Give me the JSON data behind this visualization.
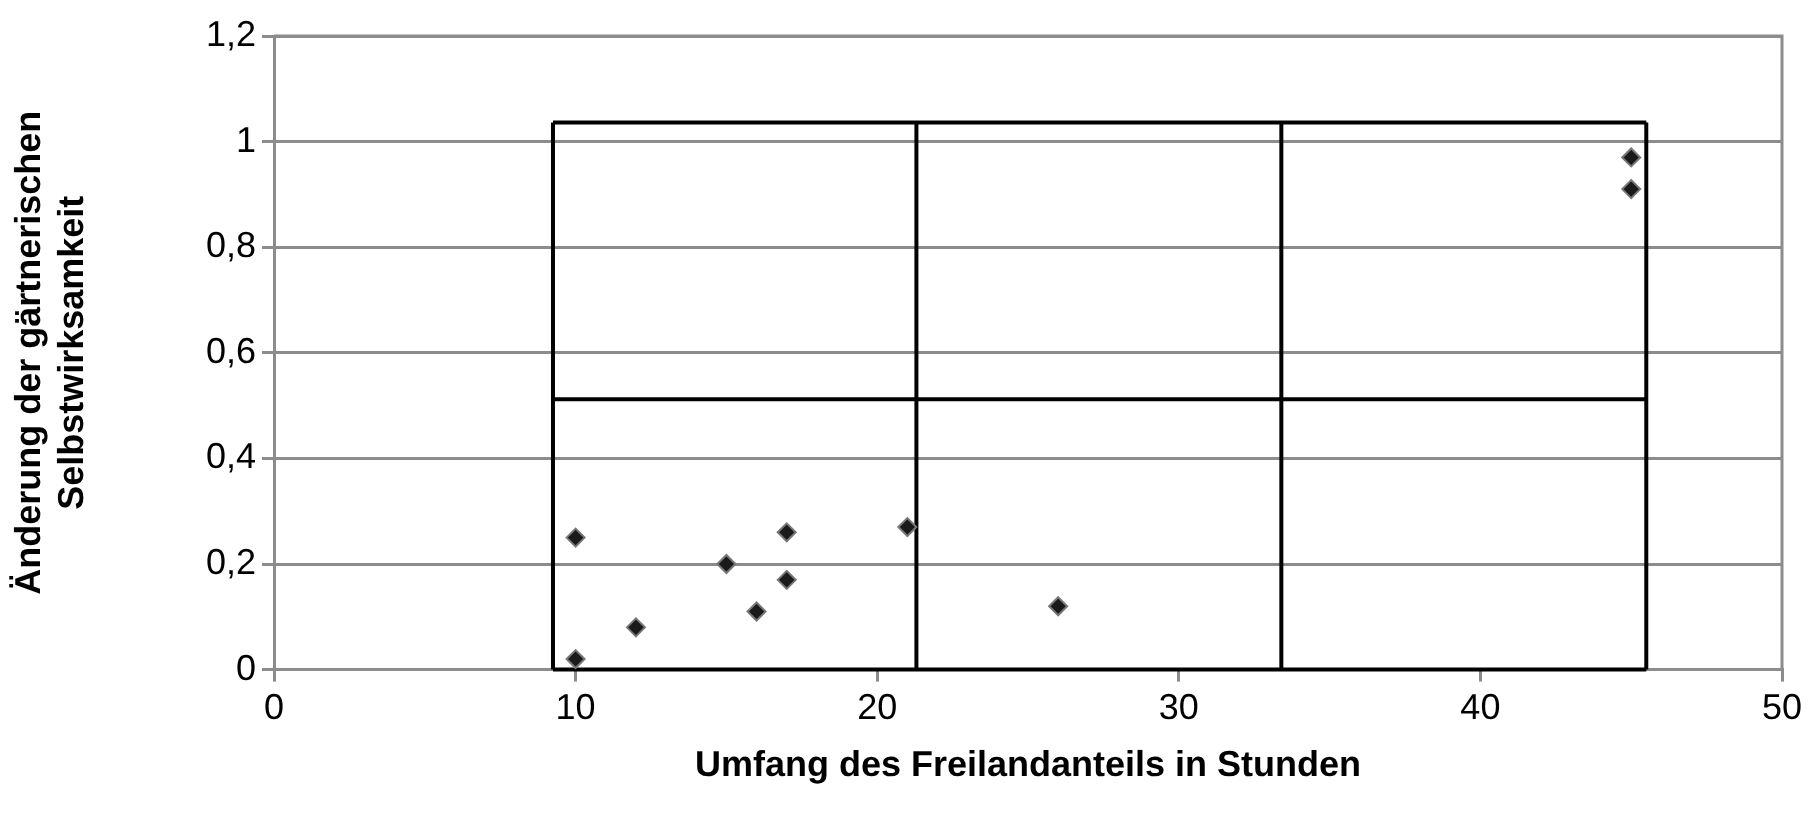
{
  "chart_data": {
    "type": "scatter",
    "xlabel": "Umfang des Freilandanteils in Stunden",
    "ylabel": "Änderung der gärtnerischen\nSelbstwirksamkeit",
    "marker": "diamond",
    "grid": "y",
    "legend": false,
    "xlim": [
      0,
      50
    ],
    "xticks": [
      0,
      10,
      20,
      30,
      40,
      50
    ],
    "ylim": [
      0,
      1.2
    ],
    "yticks": [
      {
        "value": 0,
        "label": "0"
      },
      {
        "value": 0.2,
        "label": "0,2"
      },
      {
        "value": 0.4,
        "label": "0,4"
      },
      {
        "value": 0.6,
        "label": "0,6"
      },
      {
        "value": 0.8,
        "label": "0,8"
      },
      {
        "value": 1,
        "label": "1"
      },
      {
        "value": 1.2,
        "label": "1,2"
      }
    ],
    "series": [
      {
        "color": "#1a1a1a",
        "x": [
          10,
          10,
          12,
          15,
          16,
          17,
          17,
          21,
          26,
          45,
          45
        ],
        "values": [
          0.25,
          0.02,
          0.08,
          0.2,
          0.11,
          0.26,
          0.17,
          0.27,
          0.12,
          0.97,
          0.91
        ]
      },
      {
        "type": "line",
        "color": "#000000",
        "marker": "none",
        "x": [
          9.25,
          45.5
        ],
        "values": [
          0,
          0
        ]
      },
      {
        "type": "line",
        "color": "#000000",
        "marker": "none",
        "x": [
          9.25,
          45.5
        ],
        "values": [
          0.512,
          0.512
        ]
      },
      {
        "type": "line",
        "color": "#000000",
        "marker": "none",
        "x": [
          9.25,
          45.5
        ],
        "values": [
          1.036,
          1.036
        ]
      },
      {
        "type": "line",
        "color": "#000000",
        "marker": "none",
        "x": [
          9.25,
          9.25
        ],
        "values": [
          0,
          1.036
        ]
      },
      {
        "type": "line",
        "color": "#000000",
        "marker": "none",
        "x": [
          21.3,
          21.3
        ],
        "values": [
          0,
          1.036
        ]
      },
      {
        "type": "line",
        "color": "#000000",
        "marker": "none",
        "x": [
          33.4,
          33.4
        ],
        "values": [
          0,
          1.036
        ]
      },
      {
        "type": "line",
        "color": "#000000",
        "marker": "none",
        "x": [
          45.5,
          45.5
        ],
        "values": [
          0,
          1.036
        ]
      }
    ]
  }
}
